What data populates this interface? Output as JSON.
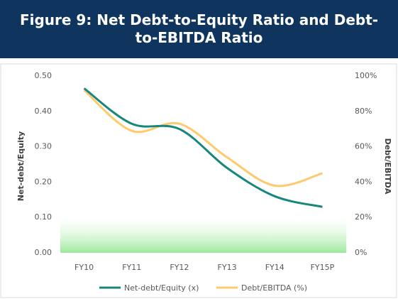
{
  "chart_data": {
    "type": "line",
    "title": "Figure 9: Net Debt-to-Equity Ratio and Debt-to-EBITDA Ratio",
    "ylabel": "Net-debt/Equity",
    "y2label": "Debt/EBITDA",
    "categories": [
      "FY10",
      "FY11",
      "FY12",
      "FY13",
      "FY14",
      "FY15P"
    ],
    "series": [
      {
        "name": "Net-debt/Equity (x)",
        "color": "#16877a",
        "values": [
          0.465,
          0.365,
          0.35,
          0.24,
          0.16,
          0.13
        ]
      },
      {
        "name": "Debt/EBITDA (%)",
        "color": "#ffca6e",
        "axis": "y2",
        "values": [
          92,
          69,
          73,
          54,
          38,
          45
        ]
      }
    ],
    "ylim": [
      0,
      0.5
    ],
    "yticks": [
      {
        "value": 0,
        "label": "0.00"
      },
      {
        "value": 0.1,
        "label": "0.10"
      },
      {
        "value": 0.2,
        "label": "0.20"
      },
      {
        "value": 0.3,
        "label": "0.30"
      },
      {
        "value": 0.4,
        "label": "0.40"
      },
      {
        "value": 0.5,
        "label": "0.50"
      }
    ],
    "y2lim": [
      0,
      100
    ],
    "y2ticks": [
      {
        "value": 0,
        "label": "0%"
      },
      {
        "value": 20,
        "label": "20%"
      },
      {
        "value": 40,
        "label": "40%"
      },
      {
        "value": 60,
        "label": "60%"
      },
      {
        "value": 80,
        "label": "80%"
      },
      {
        "value": 100,
        "label": "100%"
      }
    ],
    "grid": false,
    "legend": "bottom"
  }
}
